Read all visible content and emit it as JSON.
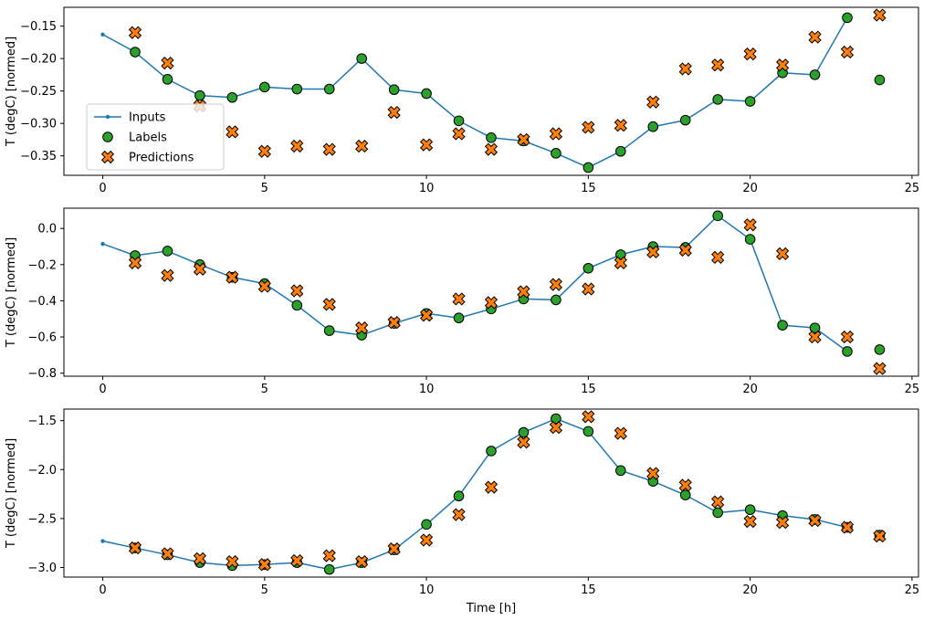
{
  "figure": {
    "background": "#ffffff",
    "xlabel": "Time [h]"
  },
  "colors": {
    "inputs": "#1f77b4",
    "labels": "#2ca02c",
    "predictions": "#ff7f0e",
    "marker_edge": "#000000",
    "legend_border": "#cccccc"
  },
  "legend": {
    "position": "upper-left-of-first-subplot",
    "entries": [
      {
        "label": "Inputs",
        "marker": "line-with-dot",
        "color": "#1f77b4"
      },
      {
        "label": "Labels",
        "marker": "circle",
        "color": "#2ca02c"
      },
      {
        "label": "Predictions",
        "marker": "x-cross",
        "color": "#ff7f0e"
      }
    ]
  },
  "chart_data": [
    {
      "type": "line",
      "title": "",
      "xlabel": "",
      "ylabel": "T (degC) [normed]",
      "xlim": [
        -1.2,
        25.2
      ],
      "ylim": [
        -0.38,
        -0.121
      ],
      "xticks": [
        0,
        5,
        10,
        15,
        20,
        25
      ],
      "yticks": [
        -0.15,
        -0.2,
        -0.25,
        -0.3,
        -0.35
      ],
      "ytick_decimals": 2,
      "grid": false,
      "series": {
        "inputs": {
          "name": "Inputs",
          "x": [
            0,
            1,
            2,
            3,
            4,
            5,
            6,
            7,
            8,
            9,
            10,
            11,
            12,
            13,
            14,
            15,
            16,
            17,
            18,
            19,
            20,
            21,
            22,
            23
          ],
          "y": [
            -0.163,
            -0.19,
            -0.232,
            -0.257,
            -0.26,
            -0.244,
            -0.247,
            -0.247,
            -0.2,
            -0.248,
            -0.254,
            -0.296,
            -0.322,
            -0.327,
            -0.346,
            -0.368,
            -0.343,
            -0.305,
            -0.295,
            -0.263,
            -0.266,
            -0.222,
            -0.225,
            -0.137
          ]
        },
        "labels": {
          "name": "Labels",
          "x": [
            1,
            2,
            3,
            4,
            5,
            6,
            7,
            8,
            9,
            10,
            11,
            12,
            13,
            14,
            15,
            16,
            17,
            18,
            19,
            20,
            21,
            22,
            23,
            24
          ],
          "y": [
            -0.19,
            -0.232,
            -0.257,
            -0.26,
            -0.244,
            -0.247,
            -0.247,
            -0.2,
            -0.248,
            -0.254,
            -0.296,
            -0.322,
            -0.327,
            -0.346,
            -0.368,
            -0.343,
            -0.305,
            -0.295,
            -0.263,
            -0.266,
            -0.222,
            -0.225,
            -0.137,
            -0.233
          ]
        },
        "predictions": {
          "name": "Predictions",
          "x": [
            1,
            2,
            3,
            4,
            5,
            6,
            7,
            8,
            9,
            10,
            11,
            12,
            13,
            14,
            15,
            16,
            17,
            18,
            19,
            20,
            21,
            22,
            23,
            24
          ],
          "y": [
            -0.16,
            -0.207,
            -0.273,
            -0.313,
            -0.343,
            -0.335,
            -0.34,
            -0.335,
            -0.283,
            -0.333,
            -0.316,
            -0.34,
            -0.325,
            -0.316,
            -0.306,
            -0.303,
            -0.267,
            -0.216,
            -0.21,
            -0.193,
            -0.21,
            -0.167,
            -0.19,
            -0.133
          ]
        }
      }
    },
    {
      "type": "line",
      "title": "",
      "xlabel": "",
      "ylabel": "T (degC) [normed]",
      "xlim": [
        -1.2,
        25.2
      ],
      "ylim": [
        -0.817,
        0.112
      ],
      "xticks": [
        0,
        5,
        10,
        15,
        20,
        25
      ],
      "yticks": [
        0.0,
        -0.2,
        -0.4,
        -0.6,
        -0.8
      ],
      "ytick_decimals": 1,
      "grid": false,
      "series": {
        "inputs": {
          "name": "Inputs",
          "x": [
            0,
            1,
            2,
            3,
            4,
            5,
            6,
            7,
            8,
            9,
            10,
            11,
            12,
            13,
            14,
            15,
            16,
            17,
            18,
            19,
            20,
            21,
            22,
            23
          ],
          "y": [
            -0.085,
            -0.15,
            -0.125,
            -0.2,
            -0.27,
            -0.305,
            -0.425,
            -0.565,
            -0.59,
            -0.525,
            -0.47,
            -0.495,
            -0.445,
            -0.39,
            -0.395,
            -0.22,
            -0.145,
            -0.1,
            -0.105,
            0.07,
            -0.06,
            -0.535,
            -0.55,
            -0.68
          ]
        },
        "labels": {
          "name": "Labels",
          "x": [
            1,
            2,
            3,
            4,
            5,
            6,
            7,
            8,
            9,
            10,
            11,
            12,
            13,
            14,
            15,
            16,
            17,
            18,
            19,
            20,
            21,
            22,
            23,
            24
          ],
          "y": [
            -0.15,
            -0.125,
            -0.2,
            -0.27,
            -0.305,
            -0.425,
            -0.565,
            -0.59,
            -0.525,
            -0.47,
            -0.495,
            -0.445,
            -0.39,
            -0.395,
            -0.22,
            -0.145,
            -0.1,
            -0.105,
            0.07,
            -0.06,
            -0.535,
            -0.55,
            -0.68,
            -0.67
          ]
        },
        "predictions": {
          "name": "Predictions",
          "x": [
            1,
            2,
            3,
            4,
            5,
            6,
            7,
            8,
            9,
            10,
            11,
            12,
            13,
            14,
            15,
            16,
            17,
            18,
            19,
            20,
            21,
            22,
            23,
            24
          ],
          "y": [
            -0.19,
            -0.26,
            -0.225,
            -0.27,
            -0.32,
            -0.345,
            -0.42,
            -0.55,
            -0.52,
            -0.48,
            -0.39,
            -0.41,
            -0.35,
            -0.31,
            -0.335,
            -0.19,
            -0.13,
            -0.12,
            -0.16,
            0.02,
            -0.14,
            -0.6,
            -0.6,
            -0.775
          ]
        }
      }
    },
    {
      "type": "line",
      "title": "",
      "xlabel": "Time [h]",
      "ylabel": "T (degC) [normed]",
      "xlim": [
        -1.2,
        25.2
      ],
      "ylim": [
        -3.098,
        -1.382
      ],
      "xticks": [
        0,
        5,
        10,
        15,
        20,
        25
      ],
      "yticks": [
        -1.5,
        -2.0,
        -2.5,
        -3.0
      ],
      "ytick_decimals": 1,
      "grid": false,
      "series": {
        "inputs": {
          "name": "Inputs",
          "x": [
            0,
            1,
            2,
            3,
            4,
            5,
            6,
            7,
            8,
            9,
            10,
            11,
            12,
            13,
            14,
            15,
            16,
            17,
            18,
            19,
            20,
            21,
            22,
            23
          ],
          "y": [
            -2.73,
            -2.8,
            -2.87,
            -2.95,
            -2.98,
            -2.97,
            -2.95,
            -3.02,
            -2.95,
            -2.82,
            -2.56,
            -2.27,
            -1.81,
            -1.62,
            -1.48,
            -1.61,
            -2.01,
            -2.12,
            -2.26,
            -2.44,
            -2.41,
            -2.47,
            -2.51,
            -2.59
          ]
        },
        "labels": {
          "name": "Labels",
          "x": [
            1,
            2,
            3,
            4,
            5,
            6,
            7,
            8,
            9,
            10,
            11,
            12,
            13,
            14,
            15,
            16,
            17,
            18,
            19,
            20,
            21,
            22,
            23,
            24
          ],
          "y": [
            -2.8,
            -2.87,
            -2.95,
            -2.98,
            -2.97,
            -2.95,
            -3.02,
            -2.95,
            -2.82,
            -2.56,
            -2.27,
            -1.81,
            -1.62,
            -1.48,
            -1.61,
            -2.01,
            -2.12,
            -2.26,
            -2.44,
            -2.41,
            -2.47,
            -2.51,
            -2.59,
            -2.67
          ]
        },
        "predictions": {
          "name": "Predictions",
          "x": [
            1,
            2,
            3,
            4,
            5,
            6,
            7,
            8,
            9,
            10,
            11,
            12,
            13,
            14,
            15,
            16,
            17,
            18,
            19,
            20,
            21,
            22,
            23,
            24
          ],
          "y": [
            -2.8,
            -2.86,
            -2.91,
            -2.94,
            -2.97,
            -2.93,
            -2.88,
            -2.94,
            -2.81,
            -2.72,
            -2.46,
            -2.18,
            -1.72,
            -1.57,
            -1.46,
            -1.63,
            -2.04,
            -2.16,
            -2.33,
            -2.53,
            -2.54,
            -2.52,
            -2.59,
            -2.68
          ]
        }
      }
    }
  ]
}
